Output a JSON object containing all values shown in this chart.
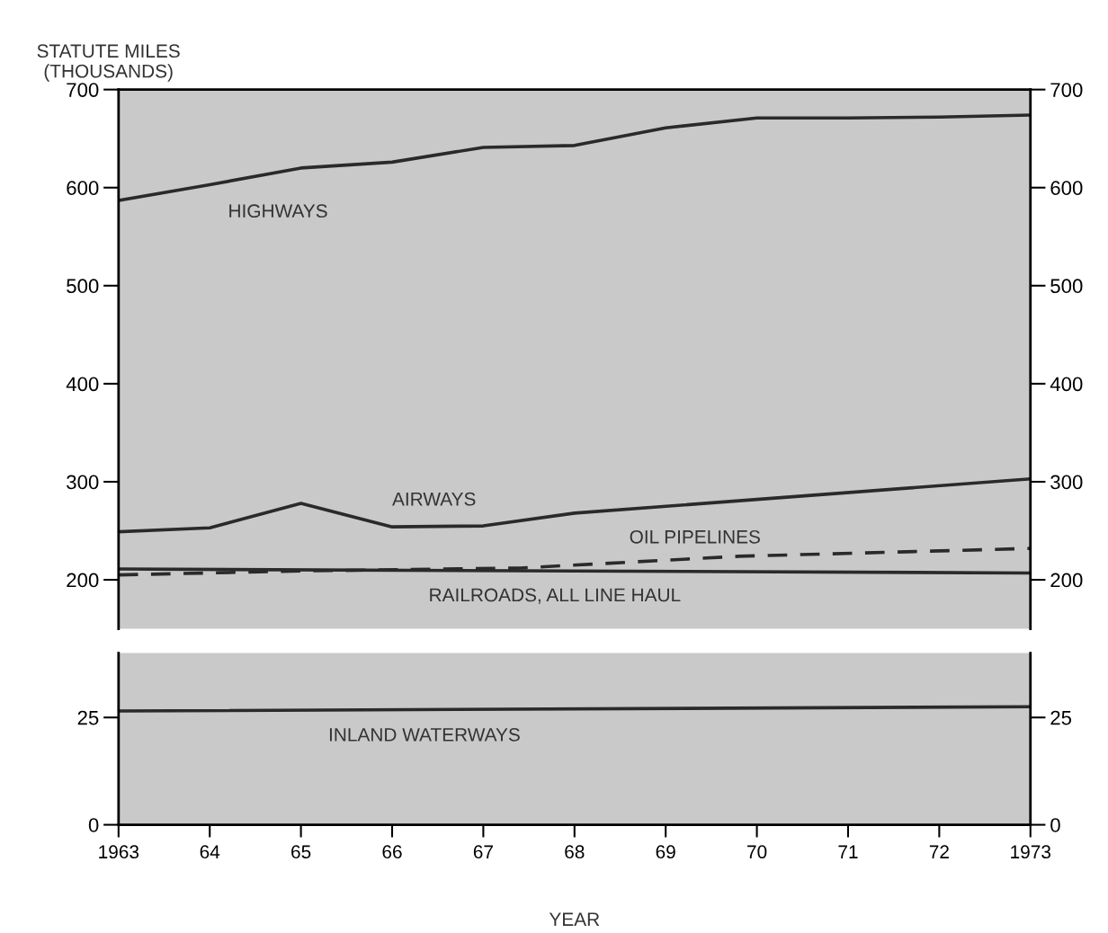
{
  "chart_data": [
    {
      "type": "line",
      "ylabel": "STATUTE MILES\n(THOUSANDS)",
      "x": [
        1963,
        1964,
        1965,
        1966,
        1967,
        1968,
        1969,
        1970,
        1971,
        1972,
        1973
      ],
      "xlim": [
        1963,
        1973
      ],
      "ylim": [
        150,
        700
      ],
      "yticks": [
        200,
        300,
        400,
        500,
        600,
        700
      ],
      "y2lim": [
        150,
        700
      ],
      "y2ticks": [
        200,
        300,
        400,
        500,
        600,
        700
      ],
      "tick_labels": "y",
      "grid": false,
      "legend": false,
      "series": [
        {
          "name": "HIGHWAYS",
          "color": "#2a2a2a",
          "values": [
            587,
            603,
            620,
            626,
            641,
            643,
            661,
            671,
            671,
            672,
            674
          ]
        },
        {
          "name": "AIRWAYS",
          "color": "#2a2a2a",
          "x": [
            1963,
            1964,
            1965,
            1966,
            1967,
            1968,
            1970,
            1973
          ],
          "values": [
            249,
            253,
            278,
            254,
            255,
            268,
            282,
            303
          ]
        },
        {
          "name": "OIL PIPELINES",
          "color": "#2a2a2a",
          "line_style": "dashed",
          "x": [
            1963,
            1965,
            1967.4,
            1969.8,
            1973
          ],
          "values": [
            205,
            209,
            212,
            224,
            232
          ]
        },
        {
          "name": "RAILROADS, ALL LINE HAUL",
          "color": "#2a2a2a",
          "x": [
            1963,
            1968,
            1973
          ],
          "values": [
            211,
            209,
            207
          ]
        }
      ]
    },
    {
      "type": "line",
      "xlabel": "YEAR",
      "x": [
        1963,
        1973
      ],
      "xlim": [
        1963,
        1973
      ],
      "xticks": [
        1963,
        {
          "value": 1964,
          "label": "64"
        },
        {
          "value": 1965,
          "label": "65"
        },
        {
          "value": 1966,
          "label": "66"
        },
        {
          "value": 1967,
          "label": "67"
        },
        {
          "value": 1968,
          "label": "68"
        },
        {
          "value": 1969,
          "label": "69"
        },
        {
          "value": 1970,
          "label": "70"
        },
        {
          "value": 1971,
          "label": "71"
        },
        {
          "value": 1972,
          "label": "72"
        },
        1973
      ],
      "ylim": [
        0,
        40
      ],
      "yticks": [
        0,
        25
      ],
      "y2lim": [
        0,
        40
      ],
      "y2ticks": [
        0,
        25
      ],
      "grid": false,
      "legend": false,
      "series": [
        {
          "name": "INLAND WATERWAYS",
          "color": "#2a2a2a",
          "values": [
            26.5,
            27.5
          ]
        }
      ]
    }
  ]
}
